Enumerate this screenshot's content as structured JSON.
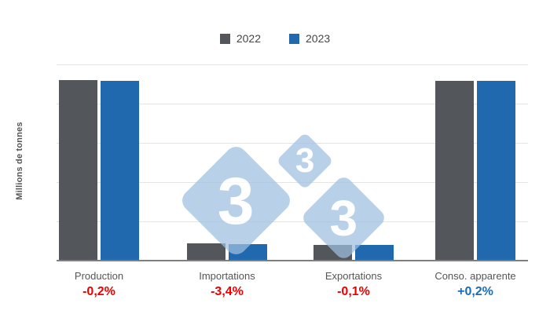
{
  "chart_data": {
    "type": "bar",
    "categories": [
      "Production",
      "Importations",
      "Exportations",
      "Conso. apparente"
    ],
    "series": [
      {
        "name": "2022",
        "color": "#53565b",
        "values": [
          114.8,
          11.0,
          10.0,
          114.4
        ]
      },
      {
        "name": "2023",
        "color": "#2069ae",
        "values": [
          114.6,
          10.6,
          9.95,
          114.6
        ]
      }
    ],
    "change_labels": [
      {
        "text": "-0,2%",
        "sentiment": "negative"
      },
      {
        "text": "-3,4%",
        "sentiment": "negative"
      },
      {
        "text": "-0,1%",
        "sentiment": "negative"
      },
      {
        "text": "+0,2%",
        "sentiment": "positive"
      }
    ],
    "ylabel": "Millions de tonnes",
    "ylim": [
      0,
      125
    ],
    "yticks": [
      0,
      25,
      50,
      75,
      100,
      125
    ],
    "grid": true,
    "legend_position": "top"
  },
  "watermark": {
    "glyph": "3",
    "diamond_color": "#9ec0e1",
    "glyph_color": "#ffffff"
  },
  "colors": {
    "negative": "#ee0000",
    "positive": "#1a6cb5",
    "grid": "#e4e4e4",
    "axis_line": "#7f7f7f",
    "tick_text": "#666666",
    "category_text": "#555555",
    "legend_text": "#444444"
  }
}
